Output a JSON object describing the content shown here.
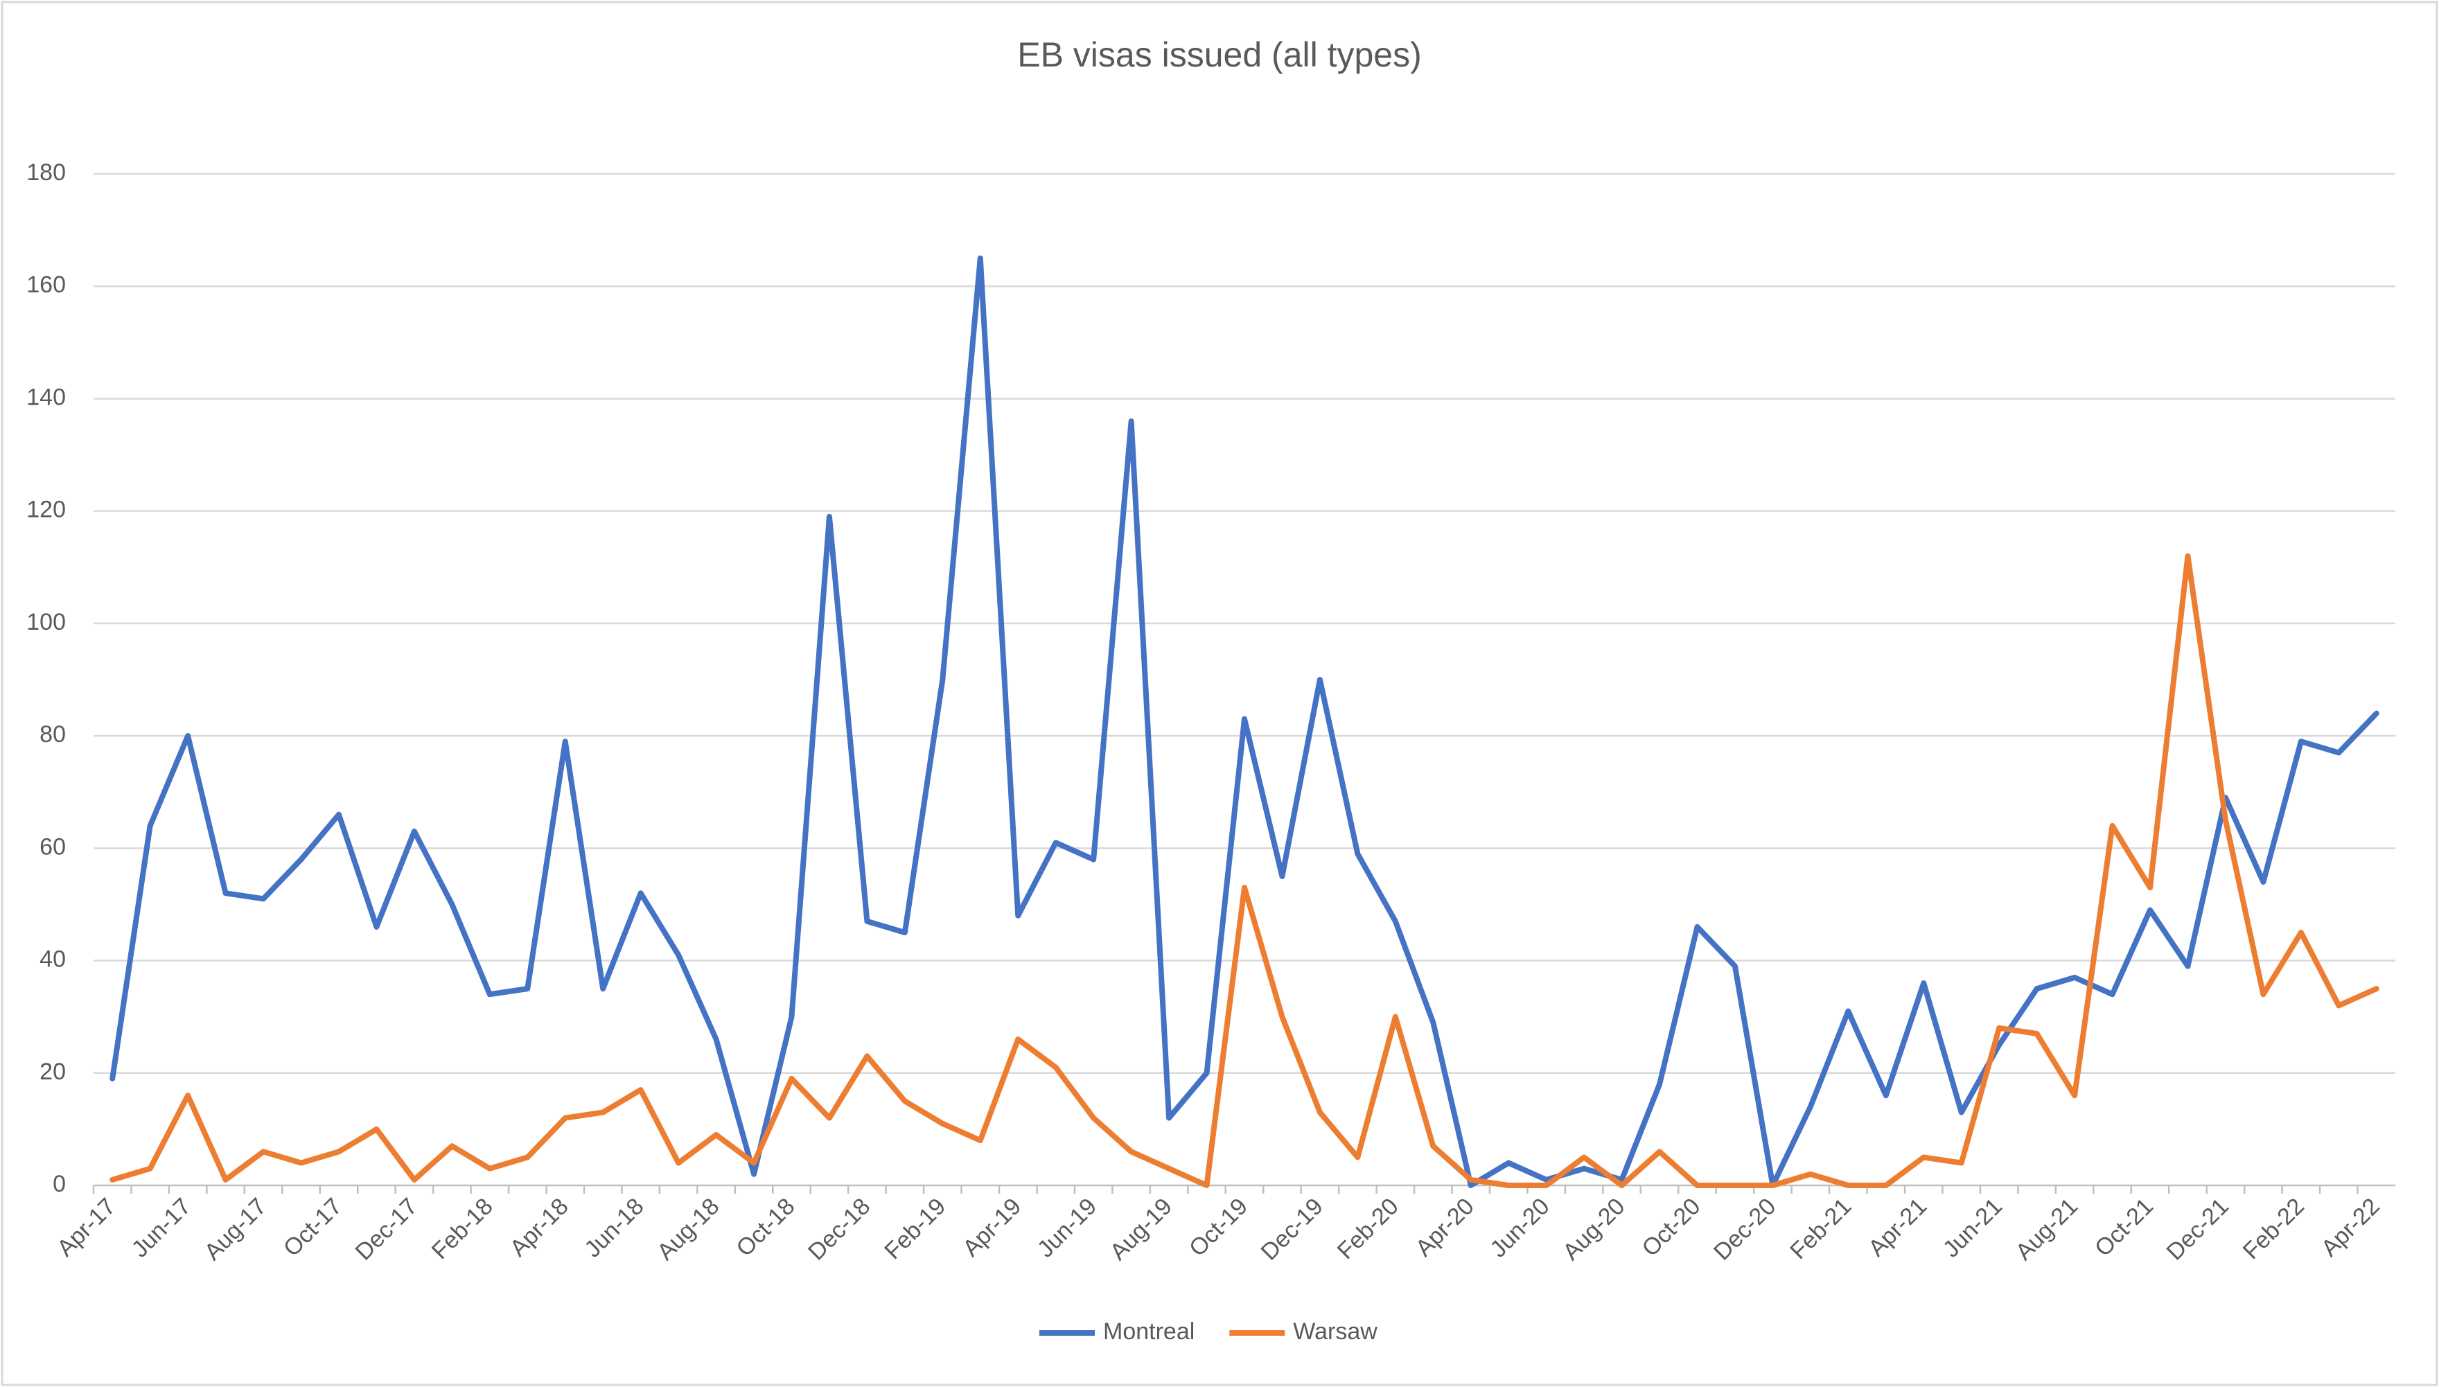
{
  "chart_data": {
    "type": "line",
    "title": "EB visas issued (all types)",
    "categories": [
      "Apr-17",
      null,
      "Jun-17",
      null,
      "Aug-17",
      null,
      "Oct-17",
      null,
      "Dec-17",
      null,
      "Feb-18",
      null,
      "Apr-18",
      null,
      "Jun-18",
      null,
      "Aug-18",
      null,
      "Oct-18",
      null,
      "Dec-18",
      null,
      "Feb-19",
      null,
      "Apr-19",
      null,
      "Jun-19",
      null,
      "Aug-19",
      null,
      "Oct-19",
      null,
      "Dec-19",
      null,
      "Feb-20",
      null,
      "Apr-20",
      null,
      "Jun-20",
      null,
      "Aug-20",
      null,
      "Oct-20",
      null,
      "Dec-20",
      null,
      "Feb-21",
      null,
      "Apr-21",
      null,
      "Jun-21",
      null,
      "Aug-21",
      null,
      "Oct-21",
      null,
      "Dec-21",
      null,
      "Feb-22",
      null,
      "Apr-22"
    ],
    "series": [
      {
        "name": "Montreal",
        "color": "#4472c4",
        "values": [
          19,
          64,
          80,
          52,
          51,
          58,
          66,
          46,
          63,
          50,
          34,
          35,
          79,
          35,
          52,
          41,
          26,
          2,
          30,
          119,
          47,
          45,
          90,
          165,
          48,
          61,
          58,
          136,
          12,
          20,
          83,
          55,
          90,
          59,
          47,
          29,
          0,
          4,
          1,
          3,
          1,
          18,
          46,
          39,
          0,
          14,
          31,
          16,
          36,
          13,
          25,
          35,
          37,
          34,
          49,
          39,
          69,
          54,
          79,
          77,
          84
        ]
      },
      {
        "name": "Warsaw",
        "color": "#ed7d31",
        "values": [
          1,
          3,
          16,
          1,
          6,
          4,
          6,
          10,
          1,
          7,
          3,
          5,
          12,
          13,
          17,
          4,
          9,
          4,
          19,
          12,
          23,
          15,
          11,
          8,
          26,
          21,
          12,
          6,
          3,
          0,
          53,
          30,
          13,
          5,
          30,
          7,
          1,
          0,
          0,
          5,
          0,
          6,
          0,
          0,
          0,
          2,
          0,
          0,
          5,
          4,
          28,
          27,
          16,
          64,
          53,
          112,
          65,
          34,
          45,
          32,
          35
        ]
      }
    ],
    "ylim": [
      0,
      180
    ],
    "yticks": [
      0,
      20,
      40,
      60,
      80,
      100,
      120,
      140,
      160,
      180
    ],
    "grid": true,
    "legend": "bottom"
  }
}
